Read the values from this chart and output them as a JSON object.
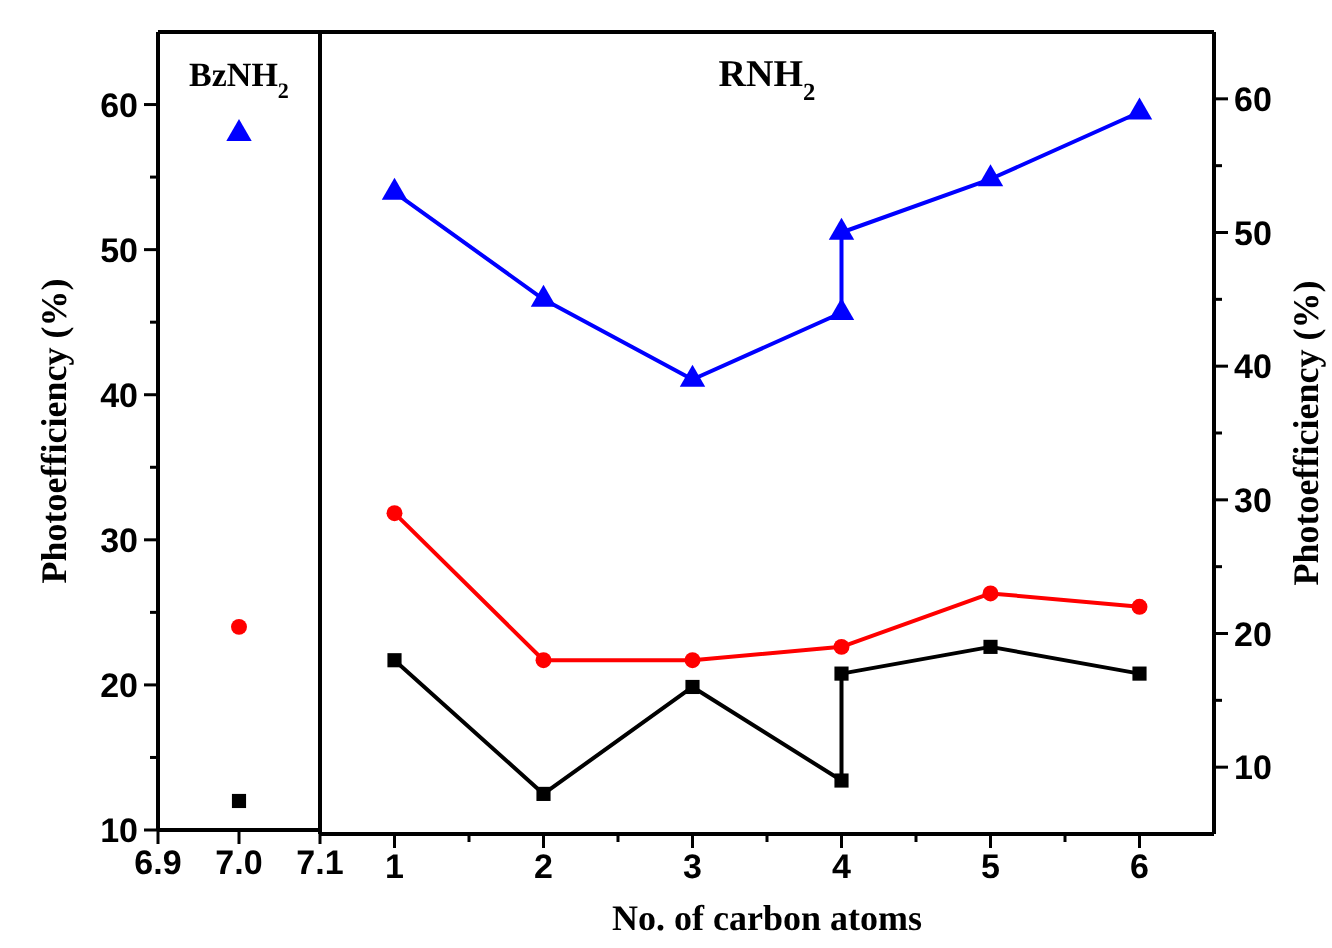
{
  "chart_data": [
    {
      "type": "scatter",
      "title": "BzNH$_{2}$",
      "ylabel": "Photoefficiency (%)",
      "xlim": [
        6.9,
        7.1
      ],
      "xticks": [
        6.9,
        {
          "value": 7,
          "label": "7.0"
        },
        7.1
      ],
      "ylim": [
        10,
        65
      ],
      "yticks": [
        10,
        {
          "value": 15,
          "label": null
        },
        20,
        {
          "value": 25,
          "label": null
        },
        30,
        {
          "value": 35,
          "label": null
        },
        40,
        {
          "value": 45,
          "label": null
        },
        50,
        {
          "value": 55,
          "label": null
        },
        60
      ],
      "series": [
        {
          "color": "#0000ff",
          "x": [
            7
          ],
          "values": [
            58
          ],
          "marker": "triangle"
        },
        {
          "color": "#ff0000",
          "x": [
            7
          ],
          "values": [
            24
          ],
          "marker": "circle"
        },
        {
          "color": "#000000",
          "x": [
            7
          ],
          "values": [
            12
          ],
          "marker": "square"
        }
      ]
    },
    {
      "type": "line",
      "title": "RNH$_{2}$",
      "xlabel": "No. of carbon atoms",
      "y2label": "Photoefficiency (%)",
      "xlim": [
        0.5,
        6.5
      ],
      "xticks": [
        1,
        {
          "value": 1.5,
          "label": null
        },
        2,
        {
          "value": 2.5,
          "label": null
        },
        3,
        {
          "value": 3.5,
          "label": null
        },
        4,
        {
          "value": 4.5,
          "label": null
        },
        5,
        {
          "value": 5.5,
          "label": null
        },
        6
      ],
      "y2lim": [
        5,
        65
      ],
      "y2ticks": [
        10,
        {
          "value": 15,
          "label": null
        },
        20,
        {
          "value": 25,
          "label": null
        },
        30,
        {
          "value": 35,
          "label": null
        },
        40,
        {
          "value": 45,
          "label": null
        },
        50,
        {
          "value": 55,
          "label": null
        },
        60
      ],
      "series": [
        {
          "color": "#0000ff",
          "axis": "y2",
          "x": [
            1,
            2,
            3,
            4,
            4,
            5,
            6
          ],
          "values": [
            53,
            45,
            39,
            44,
            50,
            54,
            59
          ],
          "marker": "triangle"
        },
        {
          "color": "#ff0000",
          "axis": "y2",
          "x": [
            1,
            2,
            3,
            4,
            5,
            6
          ],
          "values": [
            29,
            18,
            18,
            19,
            23,
            22
          ],
          "marker": "circle"
        },
        {
          "color": "#000000",
          "axis": "y2",
          "x": [
            1,
            2,
            3,
            4,
            4,
            5,
            6
          ],
          "values": [
            18,
            8,
            16,
            9,
            17,
            19,
            17
          ],
          "marker": "square"
        }
      ]
    }
  ]
}
